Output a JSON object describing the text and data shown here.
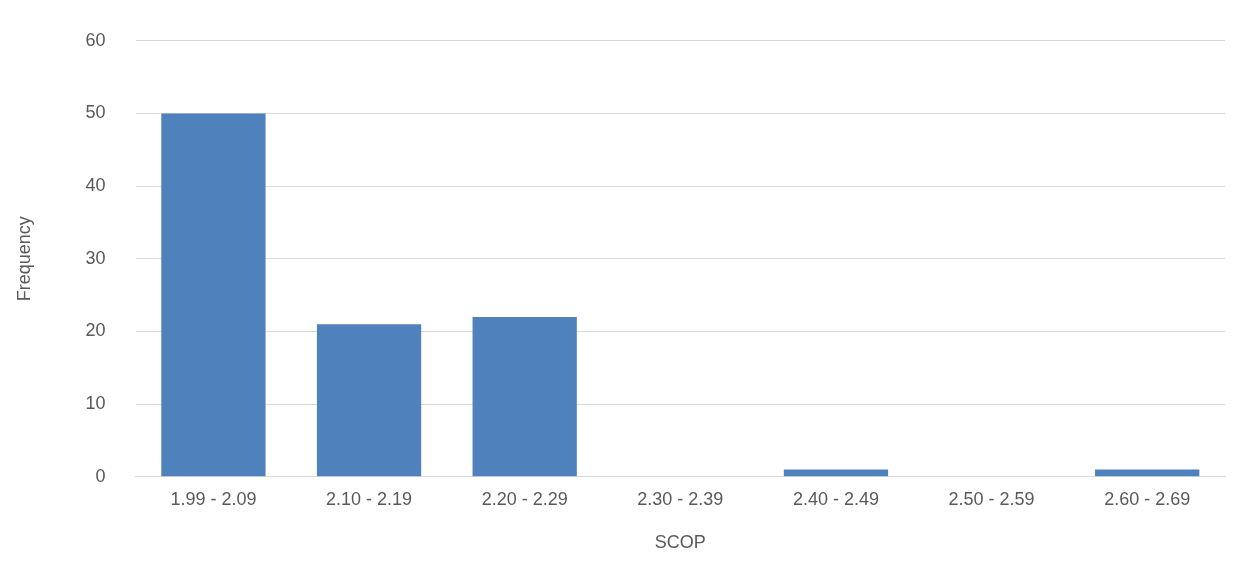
{
  "chart_data": {
    "type": "bar",
    "xlabel": "SCOP",
    "ylabel": "Frequency",
    "categories": [
      "1.99 - 2.09",
      "2.10 - 2.19",
      "2.20 - 2.29",
      "2.30 - 2.39",
      "2.40 - 2.49",
      "2.50 - 2.59",
      "2.60 - 2.69"
    ],
    "values": [
      50,
      21,
      22,
      0,
      1,
      0,
      1
    ],
    "color": "#4f81bd",
    "ylim": [
      0,
      60
    ],
    "yticks": [
      0,
      10,
      20,
      30,
      40,
      50,
      60
    ],
    "grid": "y"
  }
}
